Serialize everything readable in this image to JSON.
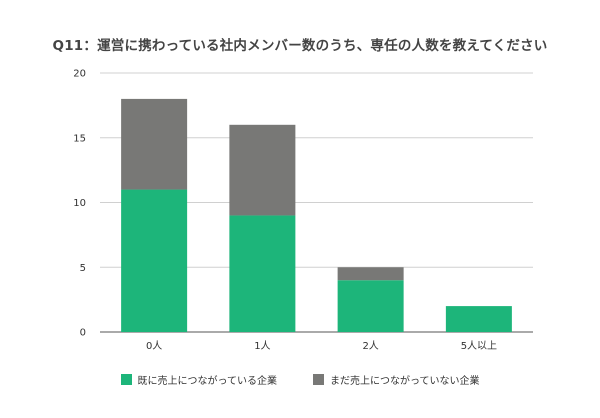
{
  "chart_data": {
    "type": "bar",
    "stacked": true,
    "title": "Q11：運営に携わっている社内メンバー数のうち、専任の人数を教えてください",
    "categories": [
      "0人",
      "1人",
      "2人",
      "5人以上"
    ],
    "series": [
      {
        "name": "既に売上につながっている企業",
        "color": "#1DB57A",
        "values": [
          11,
          9,
          4,
          2
        ]
      },
      {
        "name": "まだ売上につながっていない企業",
        "color": "#787876",
        "values": [
          7,
          7,
          1,
          0
        ]
      }
    ],
    "ylim": [
      0,
      20
    ],
    "yticks": [
      0,
      5,
      10,
      15,
      20
    ],
    "grid": true,
    "legend_position": "bottom",
    "xlabel": "",
    "ylabel": ""
  }
}
